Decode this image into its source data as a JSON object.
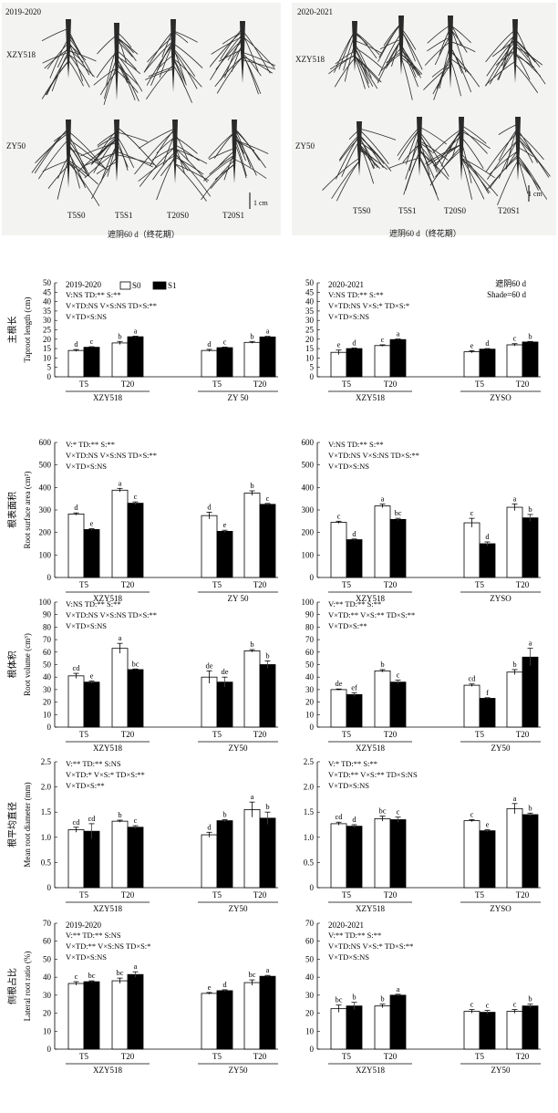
{
  "photos": [
    {
      "year": "2019-2020",
      "rows": [
        "XZY518",
        "ZY50"
      ],
      "labels": [
        "T5S0",
        "T5S1",
        "T20S0",
        "T20S1"
      ],
      "caption": "遮阴60 d（终花期）",
      "scale": "1 cm"
    },
    {
      "year": "2020-2021",
      "rows": [
        "XZY518",
        "ZY50"
      ],
      "labels": [
        "T5S0",
        "T5S1",
        "T20S0",
        "T20S1"
      ],
      "caption": "遮阴60 d（终花期）",
      "scale": "1 cm"
    }
  ],
  "legend": {
    "s0": "S0",
    "s1": "S1"
  },
  "shade_note": [
    "遮阴60 d",
    "Shade=60 d"
  ],
  "colors": {
    "s0": "#ffffff",
    "s1": "#000000",
    "root": "#2a2a2a"
  },
  "chart_data": [
    {
      "type": "bar",
      "ylabel_cn": "主根长",
      "ylabel_en": "Taproot length (cm)",
      "ylim": [
        0,
        50
      ],
      "yticks": [
        "0",
        "5",
        "10",
        "15",
        "20",
        "25",
        "30",
        "35",
        "40",
        "45",
        "50"
      ],
      "year": "2019-2020",
      "stats": [
        "V:NS TD:** S:**",
        "V×TD:NS V×S:NS TD×S:**",
        "V×TD×S:NS"
      ],
      "cultivars": [
        "XZY518",
        "ZY 50"
      ],
      "temps": [
        "T5",
        "T20",
        "T5",
        "T20"
      ],
      "series": [
        {
          "name": "S0",
          "values": [
            14,
            18,
            14,
            18.3
          ],
          "err": [
            0.5,
            0.8,
            0.6,
            0.5
          ],
          "letters": [
            "d",
            "b",
            "d",
            "b"
          ]
        },
        {
          "name": "S1",
          "values": [
            15.7,
            21.3,
            15.5,
            21.2
          ],
          "err": [
            0.3,
            0.3,
            0.3,
            0.3
          ],
          "letters": [
            "c",
            "a",
            "c",
            "a"
          ]
        }
      ]
    },
    {
      "type": "bar",
      "ylabel_cn": "",
      "ylabel_en": "",
      "ylim": [
        0,
        50
      ],
      "yticks": [
        "0",
        "5",
        "10",
        "15",
        "20",
        "25",
        "30",
        "35",
        "40",
        "45",
        "50"
      ],
      "year": "2020-2021",
      "stats": [
        "V:NS TD:** S:**",
        "V×TD:NS V×S:* TD×S:*",
        "V×TD×S:NS"
      ],
      "cultivars": [
        "XZY518",
        "ZYSO"
      ],
      "temps": [
        "T5",
        "T20",
        "T5",
        "T20"
      ],
      "series": [
        {
          "name": "S0",
          "values": [
            13,
            16.6,
            13.3,
            17
          ],
          "err": [
            1.2,
            0.4,
            0.6,
            0.6
          ],
          "letters": [
            "e",
            "c",
            "e",
            "c"
          ]
        },
        {
          "name": "S1",
          "values": [
            15,
            19.8,
            14.7,
            18.5
          ],
          "err": [
            0.3,
            0.3,
            0.3,
            0.3
          ],
          "letters": [
            "d",
            "a",
            "d",
            "b"
          ]
        }
      ]
    },
    {
      "type": "bar",
      "ylabel_cn": "根表面积",
      "ylabel_en": "Root surface area (cm²)",
      "ylim": [
        0,
        600
      ],
      "yticks": [
        "0",
        "100",
        "200",
        "300",
        "400",
        "500",
        "600"
      ],
      "year": "",
      "stats": [
        "V:* TD:** S:**",
        "V×TD:NS V×S:NS TD×S:**",
        "V×TD×S:NS"
      ],
      "cultivars": [
        "XZY518",
        "ZY 50"
      ],
      "temps": [
        "T5",
        "T20",
        "T5",
        "T20"
      ],
      "series": [
        {
          "name": "S0",
          "values": [
            282,
            388,
            275,
            375
          ],
          "err": [
            5,
            8,
            15,
            10
          ],
          "letters": [
            "d",
            "a",
            "d",
            "b"
          ]
        },
        {
          "name": "S1",
          "values": [
            213,
            330,
            205,
            325
          ],
          "err": [
            4,
            6,
            5,
            4
          ],
          "letters": [
            "e",
            "c",
            "e",
            "c"
          ]
        }
      ]
    },
    {
      "type": "bar",
      "ylabel_cn": "",
      "ylabel_en": "",
      "ylim": [
        0,
        600
      ],
      "yticks": [
        "0",
        "100",
        "200",
        "300",
        "400",
        "500",
        "600"
      ],
      "year": "",
      "stats": [
        "V:NS TD:** S:**",
        "V×TD:NS V×S:NS TD×S:**",
        "V×TD×S:NS"
      ],
      "cultivars": [
        "XZY518",
        "ZYSO"
      ],
      "temps": [
        "T5",
        "T20",
        "T5",
        "T20"
      ],
      "series": [
        {
          "name": "S0",
          "values": [
            245,
            318,
            243,
            312
          ],
          "err": [
            5,
            8,
            20,
            15
          ],
          "letters": [
            "c",
            "a",
            "c",
            "a"
          ]
        },
        {
          "name": "S1",
          "values": [
            168,
            258,
            150,
            265
          ],
          "err": [
            3,
            5,
            8,
            15
          ],
          "letters": [
            "d",
            "bc",
            "d",
            "b"
          ]
        }
      ]
    },
    {
      "type": "bar",
      "ylabel_cn": "根体积",
      "ylabel_en": "Root volume (cm³)",
      "ylim": [
        0,
        100
      ],
      "yticks": [
        "0",
        "10",
        "20",
        "30",
        "40",
        "50",
        "60",
        "70",
        "80",
        "90",
        "100"
      ],
      "year": "",
      "stats": [
        "V:NS TD:** S:**",
        "V×TD:NS V×S:NS TD×S:**",
        "V×TD×S:NS"
      ],
      "cultivars": [
        "XZY518",
        "ZY50"
      ],
      "temps": [
        "T5",
        "T20",
        "T5",
        "T20"
      ],
      "series": [
        {
          "name": "S0",
          "values": [
            41,
            63,
            40,
            61
          ],
          "err": [
            2,
            4,
            5,
            1
          ],
          "letters": [
            "cd",
            "a",
            "de",
            "b"
          ]
        },
        {
          "name": "S1",
          "values": [
            36,
            46,
            36,
            50
          ],
          "err": [
            1,
            0.5,
            4,
            3
          ],
          "letters": [
            "e",
            "bc",
            "de",
            "b"
          ]
        }
      ]
    },
    {
      "type": "bar",
      "ylabel_cn": "",
      "ylabel_en": "",
      "ylim": [
        0,
        100
      ],
      "yticks": [
        "0",
        "10",
        "20",
        "30",
        "40",
        "50",
        "60",
        "70",
        "80",
        "90",
        "100"
      ],
      "year": "",
      "stats": [
        "V:** TD:** S:**",
        "V×TD:** V×S:** TD×S:**",
        "V×TD×S:**"
      ],
      "cultivars": [
        "XZY518",
        "ZY50"
      ],
      "temps": [
        "T5",
        "T20",
        "T5",
        "T20"
      ],
      "series": [
        {
          "name": "S0",
          "values": [
            30,
            45,
            33.5,
            44
          ],
          "err": [
            0.5,
            1,
            1,
            2
          ],
          "letters": [
            "de",
            "b",
            "cd",
            "b"
          ]
        },
        {
          "name": "S1",
          "values": [
            26,
            36,
            23,
            56
          ],
          "err": [
            1.5,
            1.5,
            0.5,
            7
          ],
          "letters": [
            "ef",
            "c",
            "f",
            "a"
          ]
        }
      ]
    },
    {
      "type": "bar",
      "ylabel_cn": "根平均直径",
      "ylabel_en": "Mean root diameter (mm)",
      "ylim": [
        0,
        2.5
      ],
      "yticks": [
        "0",
        "0.5",
        "1.0",
        "1.5",
        "2.0",
        "2.5"
      ],
      "year": "",
      "stats": [
        "V:** TD:** S:NS",
        "V×TD:* V×S:* TD×S:**",
        "V×TD×S:**"
      ],
      "cultivars": [
        "XZY518",
        "ZY50"
      ],
      "temps": [
        "T5",
        "T20",
        "T5",
        "T20"
      ],
      "series": [
        {
          "name": "S0",
          "values": [
            1.15,
            1.32,
            1.05,
            1.55
          ],
          "err": [
            0.05,
            0.02,
            0.05,
            0.15
          ],
          "letters": [
            "cd",
            "b",
            "d",
            "a"
          ]
        },
        {
          "name": "S1",
          "values": [
            1.12,
            1.2,
            1.33,
            1.38
          ],
          "err": [
            0.15,
            0.03,
            0.02,
            0.12
          ],
          "letters": [
            "cd",
            "c",
            "b",
            "b"
          ]
        }
      ]
    },
    {
      "type": "bar",
      "ylabel_cn": "",
      "ylabel_en": "",
      "ylim": [
        0,
        2.5
      ],
      "yticks": [
        "0",
        "0.5",
        "1.0",
        "1.5",
        "2.0",
        "2.5"
      ],
      "year": "",
      "stats": [
        "V:* TD:** S:**",
        "V×TD:** V×S:** TD×S:NS",
        "V×TD×S:NS"
      ],
      "cultivars": [
        "XZY518",
        "ZYSO"
      ],
      "temps": [
        "T5",
        "T20",
        "T5",
        "T20"
      ],
      "series": [
        {
          "name": "S0",
          "values": [
            1.27,
            1.37,
            1.33,
            1.57
          ],
          "err": [
            0.03,
            0.05,
            0.02,
            0.1
          ],
          "letters": [
            "cd",
            "bc",
            "c",
            "a"
          ]
        },
        {
          "name": "S1",
          "values": [
            1.22,
            1.35,
            1.13,
            1.45
          ],
          "err": [
            0.03,
            0.05,
            0.02,
            0.03
          ],
          "letters": [
            "d",
            "c",
            "e",
            "b"
          ]
        }
      ]
    },
    {
      "type": "bar",
      "ylabel_cn": "侧根占比",
      "ylabel_en": "Lateral root ratio (%)",
      "ylim": [
        0,
        70
      ],
      "yticks": [
        "0",
        "10",
        "20",
        "30",
        "40",
        "50",
        "60",
        "70"
      ],
      "year": "2019-2020",
      "stats": [
        "V:** TD:** S:NS",
        "V×TD:** V×S:NS TD×S:*",
        "V×TD×S:NS"
      ],
      "cultivars": [
        "XZY518",
        "ZY50"
      ],
      "temps": [
        "T5",
        "T20",
        "T5",
        "T20"
      ],
      "series": [
        {
          "name": "S0",
          "values": [
            36.5,
            38,
            31,
            37
          ],
          "err": [
            1,
            1.5,
            0.5,
            1.5
          ],
          "letters": [
            "c",
            "bc",
            "e",
            "bc"
          ]
        },
        {
          "name": "S1",
          "values": [
            37.5,
            41.5,
            32.5,
            40.5
          ],
          "err": [
            0.5,
            1.5,
            0.5,
            0.5
          ],
          "letters": [
            "bc",
            "a",
            "d",
            "a"
          ]
        }
      ]
    },
    {
      "type": "bar",
      "ylabel_cn": "",
      "ylabel_en": "",
      "ylim": [
        0,
        70
      ],
      "yticks": [
        "0",
        "10",
        "20",
        "30",
        "40",
        "50",
        "60",
        "70"
      ],
      "year": "2020-2021",
      "stats": [
        "V:** TD:** S:**",
        "V×TD:NS V×S:* TD×S:**",
        "V×TD×S:NS"
      ],
      "cultivars": [
        "XZY518",
        "ZY50"
      ],
      "temps": [
        "T5",
        "T20",
        "T5",
        "T20"
      ],
      "series": [
        {
          "name": "S0",
          "values": [
            22.5,
            24,
            21,
            21
          ],
          "err": [
            2,
            1,
            1,
            1
          ],
          "letters": [
            "bc",
            "b",
            "c",
            "c"
          ]
        },
        {
          "name": "S1",
          "values": [
            24,
            30,
            20.5,
            24
          ],
          "err": [
            2,
            0.5,
            1,
            1
          ],
          "letters": [
            "b",
            "a",
            "c",
            "b"
          ]
        }
      ]
    }
  ]
}
